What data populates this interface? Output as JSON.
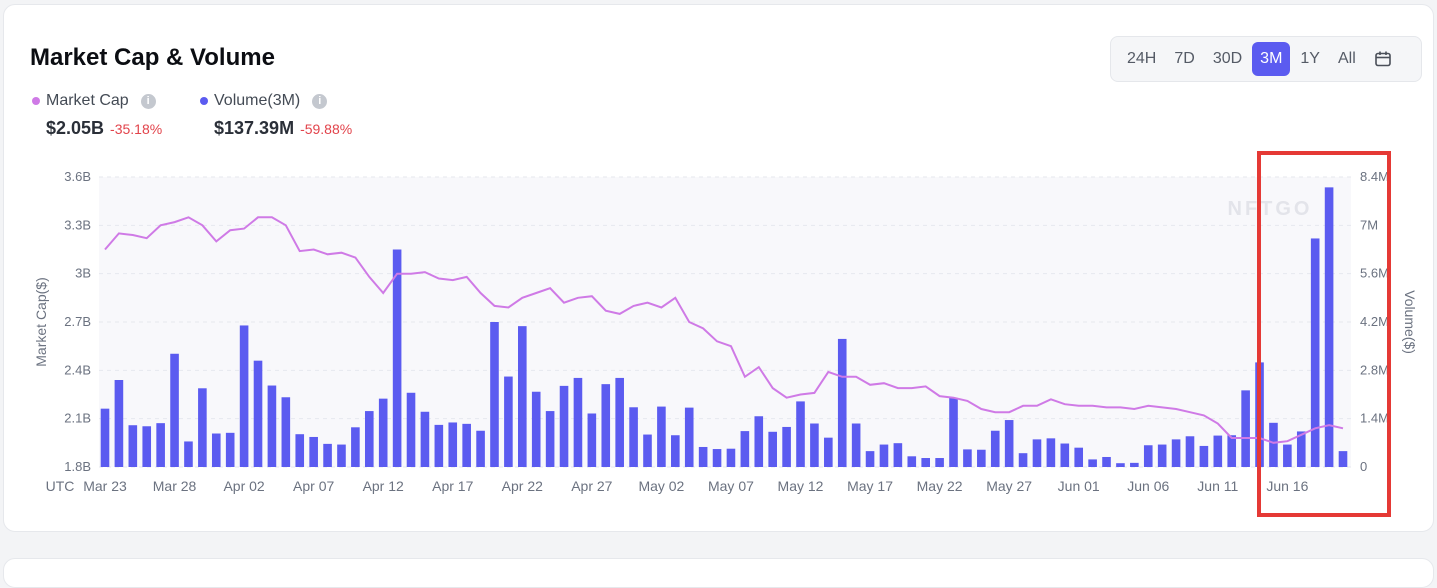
{
  "title": "Market Cap & Volume",
  "ranges": [
    "24H",
    "7D",
    "30D",
    "3M",
    "1Y",
    "All"
  ],
  "active_range": "3M",
  "legend": {
    "market_cap": {
      "label": "Market Cap",
      "value": "$2.05B",
      "change": "-35.18%",
      "color": "#cf7ae6"
    },
    "volume": {
      "label": "Volume(3M)",
      "value": "$137.39M",
      "change": "-59.88%",
      "color": "#5b5bf0"
    }
  },
  "watermark": "NFTGO",
  "chart_data": {
    "type": "bar",
    "x_start_label": "UTC",
    "x_tick_labels": [
      "Mar 23",
      "Mar 28",
      "Apr 02",
      "Apr 07",
      "Apr 12",
      "Apr 17",
      "Apr 22",
      "Apr 27",
      "May 02",
      "May 07",
      "May 12",
      "May 17",
      "May 22",
      "May 27",
      "Jun 01",
      "Jun 06",
      "Jun 11",
      "Jun 16"
    ],
    "left_axis": {
      "label": "Market Cap($)",
      "ticks": [
        "1.8B",
        "2.1B",
        "2.4B",
        "2.7B",
        "3B",
        "3.3B",
        "3.6B"
      ],
      "min": 1.8,
      "max": 3.6
    },
    "right_axis": {
      "label": "Volume($)",
      "ticks": [
        "0",
        "1.4M",
        "2.8M",
        "4.2M",
        "5.6M",
        "7M",
        "8.4M"
      ],
      "min": 0,
      "max": 8.4
    },
    "series": [
      {
        "name": "Volume(3M)",
        "type": "bar",
        "values": [
          1.69,
          2.52,
          1.21,
          1.18,
          1.27,
          3.28,
          0.74,
          2.28,
          0.97,
          0.99,
          4.1,
          3.08,
          2.36,
          2.02,
          0.95,
          0.87,
          0.67,
          0.65,
          1.15,
          1.62,
          1.98,
          6.3,
          2.15,
          1.6,
          1.22,
          1.29,
          1.25,
          1.05,
          4.2,
          2.62,
          4.08,
          2.18,
          1.62,
          2.35,
          2.58,
          1.55,
          2.4,
          2.58,
          1.73,
          0.94,
          1.75,
          0.92,
          1.72,
          0.58,
          0.52,
          0.53,
          1.04,
          1.47,
          1.02,
          1.16,
          1.9,
          1.26,
          0.85,
          3.71,
          1.26,
          0.46,
          0.65,
          0.69,
          0.31,
          0.26,
          0.26,
          2.0,
          0.51,
          0.5,
          1.05,
          1.36,
          0.4,
          0.8,
          0.83,
          0.68,
          0.56,
          0.22,
          0.29,
          0.11,
          0.12,
          0.63,
          0.65,
          0.8,
          0.89,
          0.61,
          0.91,
          0.92,
          2.22,
          3.03,
          1.28,
          0.65,
          1.03,
          6.62,
          8.1,
          0.46
        ]
      },
      {
        "name": "Market Cap",
        "type": "line",
        "values": [
          3.15,
          3.25,
          3.24,
          3.22,
          3.3,
          3.32,
          3.35,
          3.3,
          3.2,
          3.27,
          3.28,
          3.35,
          3.35,
          3.3,
          3.14,
          3.15,
          3.12,
          3.13,
          3.1,
          2.98,
          2.88,
          3.0,
          3.0,
          3.01,
          2.97,
          2.96,
          2.98,
          2.88,
          2.8,
          2.79,
          2.85,
          2.88,
          2.91,
          2.82,
          2.85,
          2.86,
          2.77,
          2.75,
          2.8,
          2.82,
          2.79,
          2.85,
          2.7,
          2.66,
          2.58,
          2.55,
          2.36,
          2.42,
          2.29,
          2.23,
          2.25,
          2.26,
          2.39,
          2.36,
          2.36,
          2.31,
          2.32,
          2.29,
          2.29,
          2.3,
          2.24,
          2.23,
          2.21,
          2.16,
          2.14,
          2.14,
          2.18,
          2.18,
          2.22,
          2.19,
          2.18,
          2.18,
          2.17,
          2.17,
          2.16,
          2.18,
          2.17,
          2.16,
          2.14,
          2.12,
          2.07,
          1.98,
          1.98,
          1.98,
          1.95,
          1.96,
          2.0,
          2.04,
          2.06,
          2.04
        ]
      }
    ],
    "grid": true,
    "highlight": "last 6 days"
  }
}
